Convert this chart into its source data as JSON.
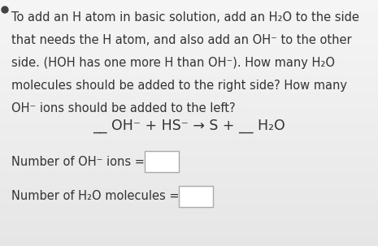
{
  "bg_color": "#ebebeb",
  "text_color": "#333333",
  "font_family": "DejaVu Sans",
  "font_size_body": 10.5,
  "font_size_equation": 12.5,
  "font_size_label": 10.5,
  "paragraph_lines": [
    "To add an H atom in basic solution, add an H₂O to the side",
    "that needs the H atom, and also add an OH⁻ to the other",
    "side. (HOH has one more H than OH⁻). How many H₂O",
    "molecules should be added to the right side? How many",
    "OH⁻ ions should be added to the left?"
  ],
  "equation_text": "__ OH⁻ + HS⁻ → S + __ H₂O",
  "label1_text": "Number of OH⁻ ions =",
  "label2_text": "Number of H₂O molecules =",
  "box_color": "#ffffff",
  "box_edge_color": "#aaaaaa"
}
